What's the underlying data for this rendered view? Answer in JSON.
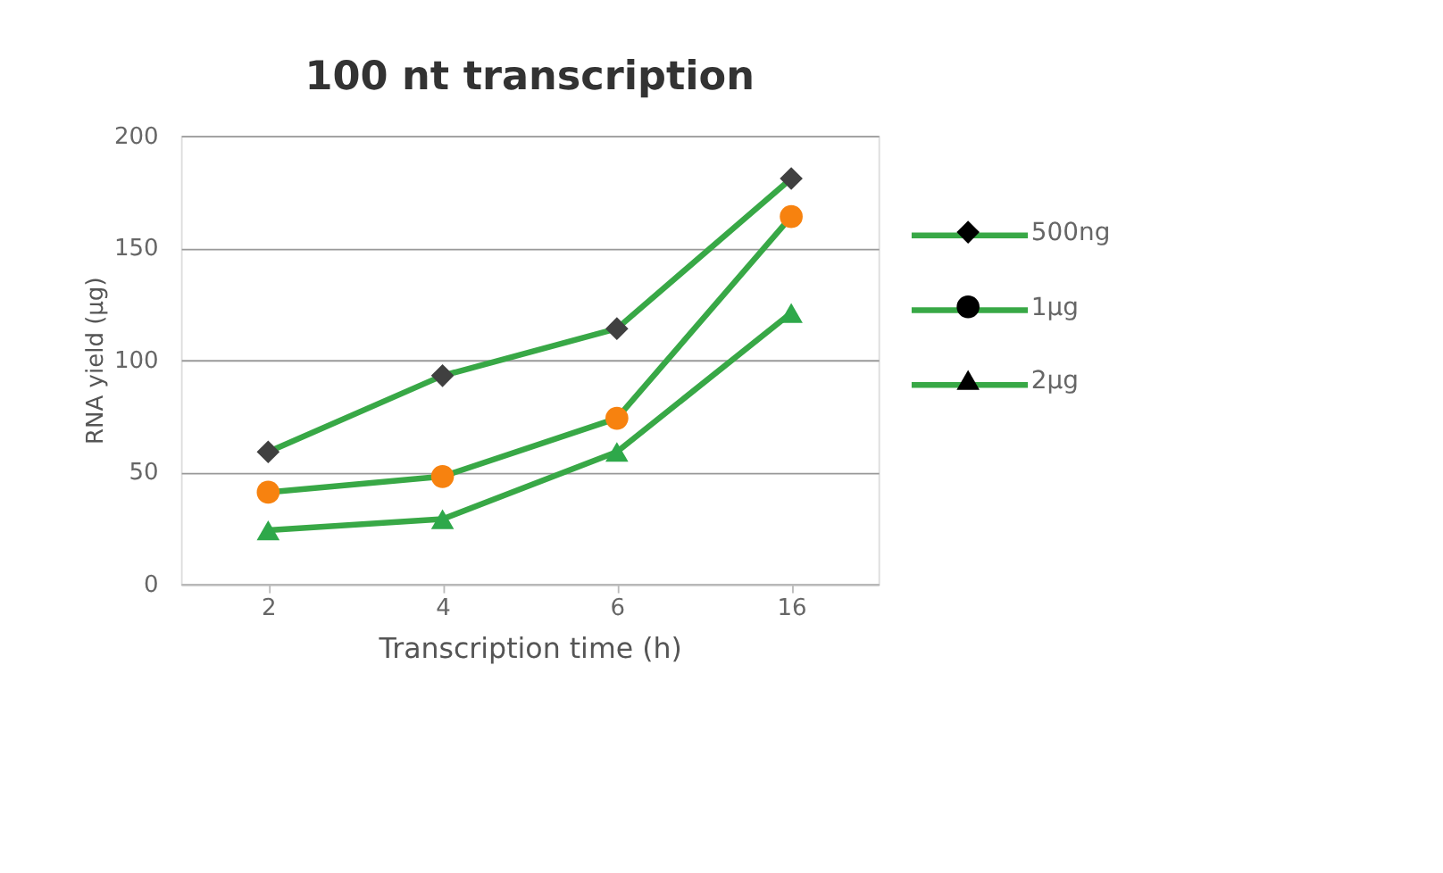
{
  "chart_data": {
    "type": "line",
    "title": "100 nt transcription",
    "xlabel": "Transcription time (h)",
    "ylabel": "RNA yield (μg)",
    "categories": [
      "2",
      "4",
      "6",
      "16"
    ],
    "series": [
      {
        "name": "500ng",
        "color": "#38a846",
        "colors": [
          "#404040",
          "#404040",
          "#404040",
          "#404040"
        ],
        "marker": "diamond",
        "values": [
          59,
          93,
          114,
          181
        ]
      },
      {
        "name": "1μg",
        "color": "#38a846",
        "colors": [
          "#f7820f",
          "#f7820f",
          "#f7820f",
          "#f7820f"
        ],
        "marker": "circle",
        "values": [
          41,
          48,
          74,
          164
        ]
      },
      {
        "name": "2μg",
        "color": "#38a846",
        "colors": [
          "#2ea84a",
          "#2ea84a",
          "#2ea84a",
          "#2ea84a"
        ],
        "marker": "triangle",
        "values": [
          24,
          29,
          59,
          121
        ]
      }
    ],
    "ylim": [
      0,
      200
    ],
    "yticks": [
      0,
      50,
      100,
      150,
      200
    ],
    "grid": "y",
    "legend": "right",
    "line_style": "solid"
  }
}
